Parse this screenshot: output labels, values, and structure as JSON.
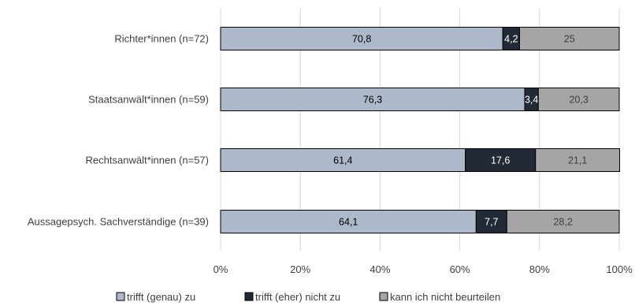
{
  "chart_data": {
    "type": "bar",
    "orientation": "horizontal",
    "stacked": "100%",
    "categories": [
      "Richter*innen (n=72)",
      "Staatsanwält*innen (n=59)",
      "Rechtsanwält*innen (n=57)",
      "Aussagepsych. Sachverständige (n=39)"
    ],
    "series": [
      {
        "name": "trifft (genau) zu",
        "color": "#adb9ca",
        "label_color": "#000000",
        "values": [
          70.8,
          76.3,
          61.4,
          64.1
        ],
        "labels": [
          "70,8",
          "76,3",
          "61,4",
          "64,1"
        ]
      },
      {
        "name": "trifft (eher) nicht zu",
        "color": "#222a35",
        "label_color": "#ffffff",
        "values": [
          4.2,
          3.4,
          17.6,
          7.7
        ],
        "labels": [
          "4,2",
          "3,4",
          "17,6",
          "7,7"
        ]
      },
      {
        "name": "kann ich nicht beurteilen",
        "color": "#a5a5a5",
        "label_color": "#404040",
        "values": [
          25,
          20.3,
          21.1,
          28.2
        ],
        "labels": [
          "25",
          "20,3",
          "21,1",
          "28,2"
        ]
      }
    ],
    "x_ticks": [
      "0%",
      "20%",
      "40%",
      "60%",
      "80%",
      "100%"
    ],
    "xlim": [
      0,
      100
    ],
    "grid": "vertical",
    "legend_position": "bottom"
  }
}
